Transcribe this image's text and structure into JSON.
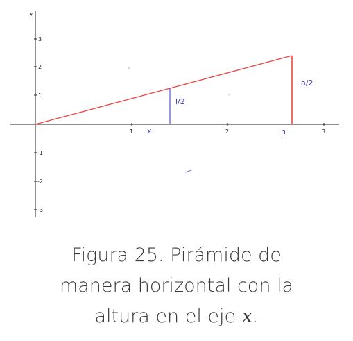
{
  "figure": {
    "axes": {
      "x_label": "",
      "y_label": "y",
      "x_ticks": [
        "1",
        "2",
        "3"
      ],
      "y_ticks": [
        "3",
        "2",
        "1",
        "-1",
        "-2",
        "-3"
      ],
      "xlim": [
        0,
        3
      ],
      "ylim": [
        -3,
        3
      ]
    },
    "annotations": {
      "x_mark": "x",
      "h_mark": "h",
      "half_l": "l/2",
      "half_a": "a/2"
    },
    "colors": {
      "hypotenuse": "#ee4444",
      "segment_l": "#5555cc",
      "segment_a": "#ee4444",
      "label_blue": "#3b3bbb",
      "axis": "#222222"
    },
    "geometry_data": {
      "x_position": 1.4,
      "h_position": 2.7,
      "half_a_value": 2.4,
      "half_l_value": 1.25
    }
  },
  "caption": {
    "line1": "Figura 25. Pirámide de",
    "line2": "manera horizontal con la",
    "line3_prefix": "altura en el eje ",
    "line3_var": "x",
    "line3_suffix": "."
  }
}
